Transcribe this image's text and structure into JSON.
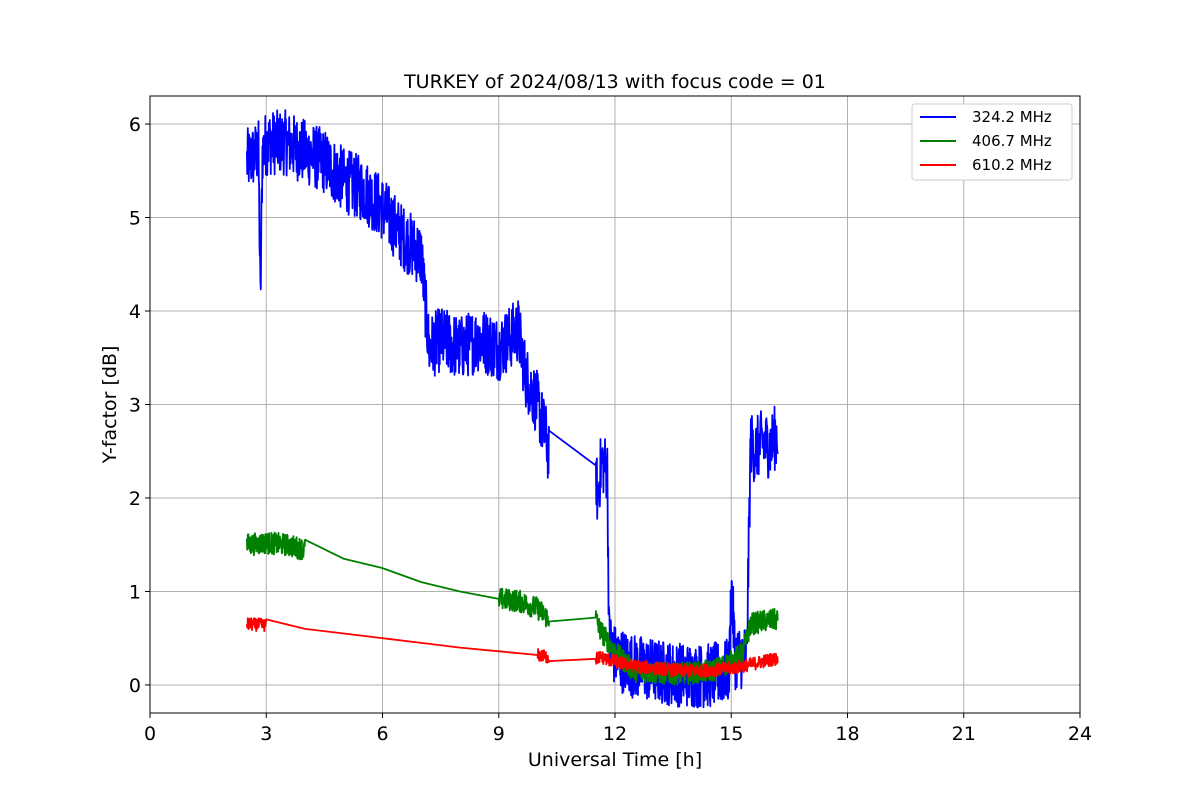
{
  "chart_data": {
    "type": "line",
    "title": "TURKEY of 2024/08/13 with focus code = 01",
    "xlabel": "Universal Time [h]",
    "ylabel": "Y-factor [dB]",
    "xlim": [
      0,
      24
    ],
    "ylim": [
      -0.3,
      6.3
    ],
    "x_ticks": [
      0,
      3,
      6,
      9,
      12,
      15,
      18,
      21,
      24
    ],
    "x_tick_labels": [
      "0",
      "3",
      "6",
      "9",
      "12",
      "15",
      "18",
      "21",
      "24"
    ],
    "y_ticks": [
      0,
      1,
      2,
      3,
      4,
      5,
      6
    ],
    "y_tick_labels": [
      "0",
      "1",
      "2",
      "3",
      "4",
      "5",
      "6"
    ],
    "grid": true,
    "legend_position": "top-right",
    "series": [
      {
        "name": "324.2 MHz",
        "color": "#0000ff",
        "noise": 0.35,
        "x": [
          2.5,
          2.8,
          2.85,
          2.9,
          3.0,
          3.5,
          4.0,
          4.5,
          5.0,
          5.5,
          6.0,
          6.5,
          7.0,
          7.2,
          7.5,
          8.0,
          8.5,
          9.0,
          9.5,
          9.7,
          10.0,
          10.25,
          10.3,
          11.5,
          11.55,
          11.65,
          11.8,
          11.85,
          12.0,
          12.5,
          13.0,
          13.5,
          14.0,
          14.5,
          14.95,
          15.0,
          15.1,
          15.4,
          15.5,
          15.6,
          15.8,
          16.0,
          16.2
        ],
        "y": [
          5.6,
          5.7,
          4.1,
          5.7,
          5.8,
          5.8,
          5.7,
          5.6,
          5.4,
          5.3,
          5.1,
          4.8,
          4.6,
          3.6,
          3.7,
          3.6,
          3.7,
          3.6,
          3.8,
          3.3,
          3.0,
          2.6,
          2.4,
          2.35,
          2.0,
          2.4,
          2.3,
          0.5,
          0.3,
          0.2,
          0.15,
          0.12,
          0.1,
          0.1,
          0.15,
          1.1,
          0.3,
          0.3,
          2.6,
          2.5,
          2.6,
          2.55,
          2.7
        ]
      },
      {
        "name": "406.7 MHz",
        "color": "#008000",
        "noise": 0.12,
        "x": [
          2.5,
          3.0,
          3.5,
          4.0,
          5.0,
          6.0,
          7.0,
          8.0,
          9.0,
          9.5,
          10.0,
          10.25,
          10.3,
          11.5,
          11.6,
          12.0,
          12.5,
          13.0,
          13.5,
          14.0,
          14.5,
          15.0,
          15.3,
          15.5,
          15.8,
          16.2
        ],
        "y": [
          1.5,
          1.52,
          1.5,
          1.45,
          1.35,
          1.25,
          1.1,
          1.0,
          0.92,
          0.9,
          0.82,
          0.72,
          0.72,
          0.72,
          0.6,
          0.35,
          0.15,
          0.13,
          0.12,
          0.13,
          0.15,
          0.25,
          0.35,
          0.65,
          0.68,
          0.7
        ]
      },
      {
        "name": "610.2 MHz",
        "color": "#ff0000",
        "noise": 0.07,
        "x": [
          2.5,
          3.0,
          4.0,
          5.0,
          6.0,
          7.0,
          8.0,
          9.0,
          10.0,
          10.25,
          10.3,
          11.5,
          11.6,
          12.0,
          12.5,
          13.0,
          13.5,
          14.0,
          14.5,
          15.0,
          15.5,
          16.0,
          16.2
        ],
        "y": [
          0.65,
          0.64,
          0.6,
          0.55,
          0.5,
          0.45,
          0.4,
          0.36,
          0.32,
          0.3,
          0.28,
          0.28,
          0.3,
          0.25,
          0.2,
          0.18,
          0.16,
          0.15,
          0.16,
          0.18,
          0.22,
          0.27,
          0.28
        ]
      }
    ]
  }
}
